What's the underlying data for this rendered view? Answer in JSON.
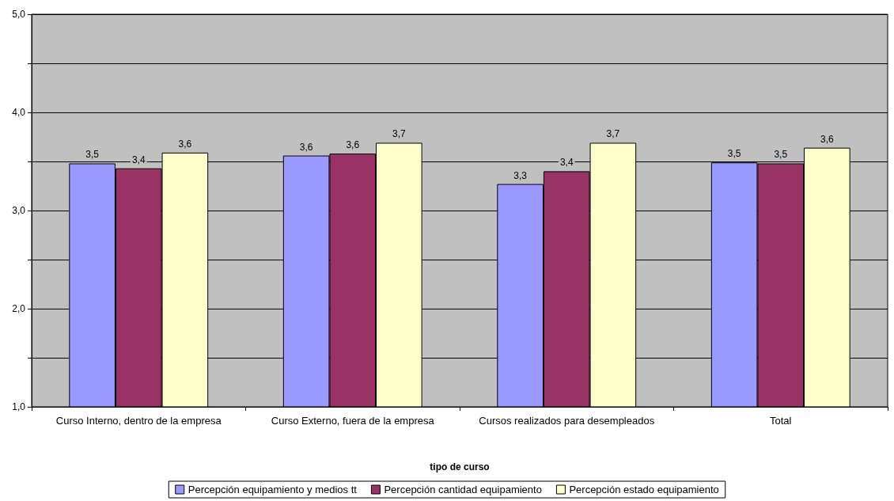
{
  "chart_data": {
    "type": "bar",
    "xlabel": "tipo de curso",
    "categories": [
      "Curso Interno, dentro de la empresa",
      "Curso Externo, fuera de la empresa",
      "Cursos realizados para desempleados",
      "Total"
    ],
    "series": [
      {
        "name": "Percepción equipamiento y medios tt",
        "color": "#9999ff",
        "values": [
          3.48,
          3.56,
          3.27,
          3.49
        ],
        "value_labels": [
          "3,5",
          "3,6",
          "3,3",
          "3,5"
        ]
      },
      {
        "name": "Percepción cantidad equipamiento",
        "color": "#993366",
        "values": [
          3.43,
          3.58,
          3.4,
          3.48
        ],
        "value_labels": [
          "3,4",
          "3,6",
          "3,4",
          "3,5"
        ]
      },
      {
        "name": "Percepción estado equipamiento",
        "color": "#ffffcc",
        "values": [
          3.59,
          3.69,
          3.69,
          3.64
        ],
        "value_labels": [
          "3,6",
          "3,7",
          "3,7",
          "3,6"
        ]
      }
    ],
    "ylim": [
      1,
      5
    ],
    "yticks": [
      {
        "value": 1,
        "label": "1,0"
      },
      {
        "value": 1.5,
        "label": null
      },
      {
        "value": 2,
        "label": "2,0"
      },
      {
        "value": 2.5,
        "label": null
      },
      {
        "value": 3,
        "label": "3,0"
      },
      {
        "value": 3.5,
        "label": null
      },
      {
        "value": 4,
        "label": "4,0"
      },
      {
        "value": 4.5,
        "label": null
      },
      {
        "value": 5,
        "label": "5,0"
      }
    ],
    "grid": "y",
    "legend": "bottom"
  }
}
